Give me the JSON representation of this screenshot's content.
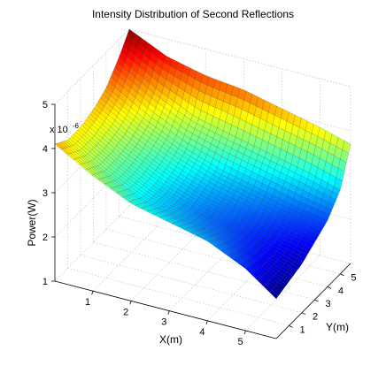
{
  "chart_data": {
    "type": "surface",
    "title": "Intensity Distribution of Second Reflections",
    "xlabel": "X(m)",
    "ylabel": "Y(m)",
    "zlabel": "Power(W)",
    "z_exponent_base": "x 10",
    "z_exponent_power": "-6",
    "x_ticks": [
      "1",
      "2",
      "3",
      "4",
      "5"
    ],
    "y_ticks": [
      "1",
      "2",
      "3",
      "4",
      "5"
    ],
    "z_ticks": [
      "1",
      "2",
      "3",
      "4",
      "5"
    ],
    "xlim": [
      0,
      5.8
    ],
    "ylim": [
      0,
      5.8
    ],
    "zlim": [
      1,
      5
    ],
    "grid": true,
    "colormap": "jet",
    "z_scale_unit": 1e-06,
    "x": [
      0,
      1,
      2,
      3,
      4,
      5,
      5.8
    ],
    "y": [
      0,
      1,
      2,
      3,
      4,
      5,
      5.8
    ],
    "z": [
      [
        4.1,
        3.9,
        3.9,
        4.0,
        4.2,
        4.6,
        5.0
      ],
      [
        3.6,
        3.4,
        3.4,
        3.5,
        3.7,
        4.1,
        4.6
      ],
      [
        3.2,
        3.0,
        3.0,
        3.1,
        3.3,
        3.7,
        4.4
      ],
      [
        3.0,
        2.8,
        2.7,
        2.8,
        3.0,
        3.5,
        4.3
      ],
      [
        2.8,
        2.6,
        2.5,
        2.6,
        2.8,
        3.3,
        4.1
      ],
      [
        2.4,
        2.3,
        2.3,
        2.4,
        2.6,
        3.1,
        3.9
      ],
      [
        1.9,
        2.0,
        2.1,
        2.3,
        2.5,
        2.9,
        3.7
      ]
    ]
  }
}
